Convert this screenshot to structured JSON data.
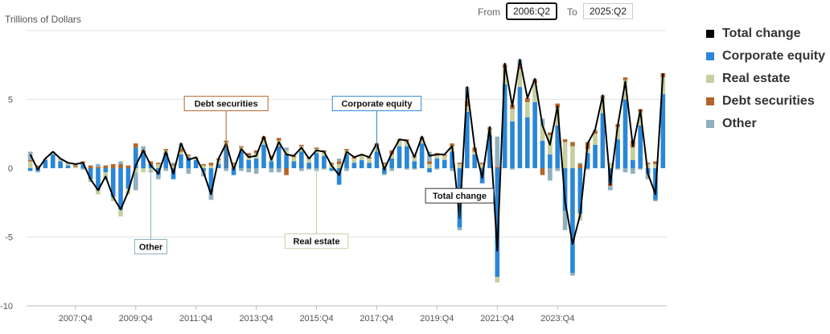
{
  "controls": {
    "from_label": "From",
    "from_value": "2006:Q2",
    "to_label": "To",
    "to_value": "2025:Q2"
  },
  "legend": [
    {
      "name": "Total change",
      "color": "#000000"
    },
    {
      "name": "Corporate equity",
      "color": "#2a87d7"
    },
    {
      "name": "Real estate",
      "color": "#c5cf9f"
    },
    {
      "name": "Debt securities",
      "color": "#b5652b"
    },
    {
      "name": "Other",
      "color": "#8fb0bd"
    }
  ],
  "chart_data": {
    "type": "bar",
    "ylabel": "Trillions of Dollars",
    "ylim": [
      -10,
      10
    ],
    "yticks": [
      5,
      0,
      -5,
      -10
    ],
    "xticks": [
      "2007:Q4",
      "2009:Q4",
      "2011:Q4",
      "2013:Q4",
      "2015:Q4",
      "2017:Q4",
      "2019:Q4",
      "2021:Q4",
      "2023:Q4"
    ],
    "start_quarter": "2006:Q2",
    "end_quarter": "2025:Q2",
    "annotations": [
      {
        "text": "Debt securities",
        "series": "Debt securities",
        "quarter": "2012:Q4",
        "value": 4.7
      },
      {
        "text": "Corporate equity",
        "series": "Corporate equity",
        "quarter": "2017:Q4",
        "value": 4.7
      },
      {
        "text": "Other",
        "series": "Other",
        "quarter": "2010:Q2",
        "value": -5.7
      },
      {
        "text": "Real estate",
        "series": "Real estate",
        "quarter": "2015:Q4",
        "value": -5.3
      },
      {
        "text": "Total change",
        "series": "Total change",
        "quarter": "2020:Q3",
        "value": -2.0
      }
    ],
    "total_change": [
      1.0,
      -0.1,
      0.7,
      1.2,
      0.7,
      0.4,
      0.3,
      0.4,
      -0.8,
      -1.6,
      -0.6,
      -2.1,
      -3.0,
      -1.7,
      0.2,
      1.3,
      0.2,
      -0.4,
      1.2,
      -0.4,
      1.8,
      0.6,
      0.8,
      -0.3,
      -1.9,
      0.7,
      1.8,
      -0.1,
      1.4,
      0.8,
      0.9,
      2.3,
      0.6,
      1.9,
      1.0,
      0.9,
      1.5,
      0.7,
      1.3,
      1.2,
      0.2,
      -0.5,
      1.2,
      0.8,
      1.0,
      0.8,
      1.8,
      -0.1,
      1.1,
      2.1,
      2.0,
      0.8,
      2.3,
      0.9,
      1.0,
      1.0,
      1.6,
      -3.6,
      5.9,
      1.5,
      -0.7,
      3.0,
      -6.0,
      7.6,
      4.5,
      7.9,
      5.1,
      6.5,
      3.1,
      1.7,
      4.5,
      -2.4,
      -5.5,
      -3.4,
      1.8,
      2.8,
      5.3,
      -1.2,
      3.1,
      6.3,
      1.6,
      4.2,
      -0.4,
      -1.9,
      6.9
    ],
    "series": [
      {
        "name": "Corporate equity",
        "values": [
          -0.2,
          -0.2,
          0.6,
          1.0,
          0.5,
          0.2,
          0.0,
          0.3,
          -0.8,
          -1.6,
          -0.3,
          -2.1,
          -3.0,
          -1.5,
          1.5,
          1.1,
          0.3,
          -0.5,
          1.1,
          -0.8,
          1.0,
          0.8,
          0.6,
          -0.2,
          -1.7,
          0.3,
          1.6,
          -0.5,
          1.2,
          0.6,
          0.7,
          1.7,
          0.5,
          1.6,
          1.0,
          0.5,
          1.2,
          0.4,
          1.1,
          0.9,
          -0.2,
          -1.2,
          1.0,
          0.4,
          0.6,
          0.4,
          1.2,
          -0.4,
          0.7,
          1.6,
          1.6,
          0.5,
          1.8,
          -0.3,
          0.7,
          0.6,
          1.2,
          -4.3,
          4.1,
          1.0,
          -1.1,
          2.4,
          -7.9,
          6.1,
          3.4,
          5.9,
          3.7,
          4.8,
          2.0,
          1.0,
          3.1,
          -3.1,
          -7.6,
          -3.3,
          1.1,
          1.7,
          4.0,
          -1.1,
          2.1,
          5.0,
          0.6,
          3.1,
          -0.4,
          -2.3,
          5.4
        ]
      },
      {
        "name": "Real estate",
        "values": [
          0.5,
          0.1,
          0.1,
          0.1,
          0.1,
          0.1,
          0.1,
          0.1,
          -0.1,
          -0.3,
          -0.3,
          -0.3,
          -0.5,
          -0.4,
          -0.3,
          -0.3,
          -0.2,
          0.3,
          0.2,
          0.2,
          0.2,
          0.1,
          0.1,
          0.2,
          0.2,
          0.3,
          0.3,
          0.3,
          0.3,
          0.3,
          0.4,
          0.4,
          0.3,
          0.4,
          0.3,
          0.3,
          0.4,
          0.3,
          0.3,
          0.3,
          0.3,
          0.3,
          0.3,
          0.3,
          0.3,
          0.3,
          0.4,
          0.3,
          0.3,
          0.4,
          0.4,
          0.3,
          0.3,
          0.3,
          0.3,
          0.3,
          0.4,
          0.3,
          0.4,
          0.2,
          0.3,
          0.4,
          -0.4,
          1.2,
          0.9,
          1.3,
          1.1,
          1.4,
          1.1,
          1.4,
          1.3,
          1.9,
          1.6,
          -0.5,
          0.3,
          0.8,
          1.1,
          0.4,
          0.9,
          1.4,
          0.9,
          1.0,
          0.3,
          0.3,
          1.2
        ]
      },
      {
        "name": "Debt securities",
        "values": [
          0.1,
          0.1,
          0.0,
          0.0,
          0.0,
          0.0,
          0.1,
          0.1,
          0.2,
          0.1,
          0.2,
          0.3,
          0.3,
          0.2,
          0.3,
          0.2,
          0.2,
          0.1,
          0.1,
          0.1,
          0.2,
          0.1,
          0.1,
          0.1,
          0.2,
          0.1,
          0.1,
          0.1,
          0.1,
          0.2,
          0.2,
          0.2,
          0.1,
          0.2,
          -0.5,
          0.1,
          0.1,
          0.1,
          0.1,
          0.1,
          0.1,
          0.2,
          0.1,
          0.1,
          0.1,
          0.1,
          0.2,
          0.1,
          0.3,
          0.1,
          0.1,
          0.1,
          0.1,
          0.2,
          0.1,
          0.1,
          0.2,
          0.1,
          0.4,
          0.3,
          0.1,
          0.1,
          0.1,
          0.2,
          0.3,
          0.2,
          0.3,
          0.2,
          -0.5,
          0.2,
          0.3,
          0.2,
          0.3,
          0.3,
          0.5,
          0.2,
          0.1,
          -0.2,
          0.2,
          0.2,
          0.5,
          0.2,
          0.1,
          0.2,
          0.3
        ]
      },
      {
        "name": "Other",
        "values": [
          0.6,
          -0.1,
          0.0,
          0.1,
          0.1,
          0.1,
          0.1,
          -0.1,
          -0.1,
          0.2,
          -0.2,
          0.0,
          0.2,
          0.0,
          -1.3,
          0.3,
          -0.1,
          -0.3,
          -0.2,
          0.1,
          0.4,
          -0.4,
          0.0,
          -0.4,
          -0.6,
          0.0,
          -0.2,
          0.0,
          -0.2,
          -0.3,
          -0.4,
          0.0,
          -0.3,
          -0.3,
          0.2,
          0.0,
          -0.2,
          -0.1,
          -0.2,
          -0.1,
          0.0,
          0.2,
          -0.2,
          0.0,
          0.0,
          0.0,
          0.0,
          -0.1,
          -0.2,
          0.0,
          -0.1,
          -0.1,
          0.1,
          0.7,
          -0.1,
          0.0,
          -0.2,
          -0.2,
          1.0,
          0.0,
          0.0,
          0.1,
          2.2,
          0.1,
          -0.1,
          0.5,
          0.0,
          0.1,
          0.5,
          -0.9,
          -0.2,
          -1.4,
          -0.2,
          0.1,
          -0.1,
          0.1,
          0.1,
          -0.3,
          -0.1,
          -0.3,
          -0.4,
          -0.1,
          -0.4,
          -0.1,
          0.0
        ]
      }
    ]
  }
}
